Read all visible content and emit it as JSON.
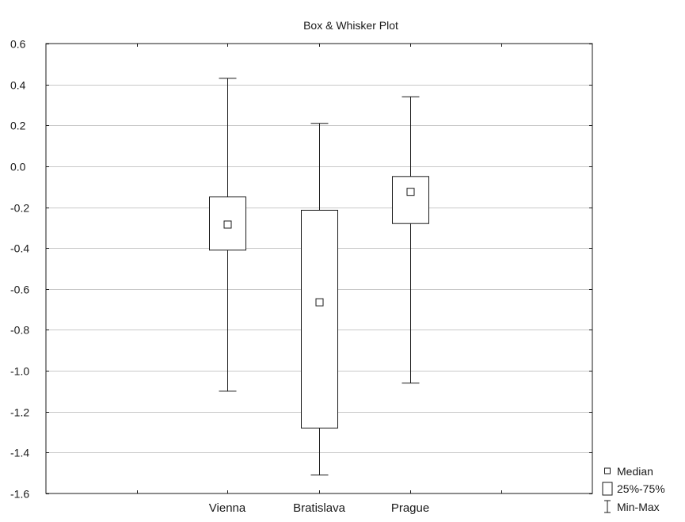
{
  "chart_data": {
    "type": "boxplot",
    "title": "Box & Whisker Plot",
    "xlabel": "",
    "ylabel": "",
    "categories": [
      "Vienna",
      "Bratislava",
      "Prague"
    ],
    "ylim": [
      -1.6,
      0.6
    ],
    "yticks": [
      0.6,
      0.4,
      0.2,
      0.0,
      -0.2,
      -0.4,
      -0.6,
      -0.8,
      -1.0,
      -1.2,
      -1.4,
      -1.6
    ],
    "ytick_labels": [
      "0.6",
      "0.4",
      "0.2",
      "0.0",
      "-0.2",
      "-0.4",
      "-0.6",
      "-0.8",
      "-1.0",
      "-1.2",
      "-1.4",
      "-1.6"
    ],
    "grid": true,
    "legend_position": "bottom-right, outside plot",
    "boxes": [
      {
        "category": "Vienna",
        "min": -1.1,
        "q1": -0.41,
        "median": -0.285,
        "q3": -0.15,
        "max": 0.43
      },
      {
        "category": "Bratislava",
        "min": -1.51,
        "q1": -1.28,
        "median": -0.665,
        "q3": -0.215,
        "max": 0.21
      },
      {
        "category": "Prague",
        "min": -1.06,
        "q1": -0.28,
        "median": -0.125,
        "q3": -0.05,
        "max": 0.34
      }
    ],
    "legend": [
      {
        "symbol": "median",
        "label": "Median"
      },
      {
        "symbol": "box",
        "label": "25%-75%"
      },
      {
        "symbol": "whisker",
        "label": "Min-Max"
      }
    ],
    "colors": {
      "line": "#1a1a1a",
      "grid": "#c8c8c8",
      "box_fill": "#ffffff"
    }
  }
}
